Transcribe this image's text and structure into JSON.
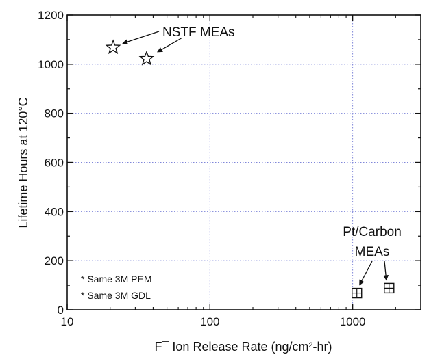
{
  "chart_data": {
    "type": "scatter",
    "title": "",
    "xlabel": "F¯ Ion Release Rate (ng/cm²-hr)",
    "ylabel": "Lifetime Hours at 120°C",
    "xscale": "log",
    "xlim": [
      10,
      3000
    ],
    "ylim": [
      0,
      1200
    ],
    "x_ticks": [
      "10",
      "100",
      "1000"
    ],
    "y_ticks": [
      "0",
      "200",
      "400",
      "600",
      "800",
      "1000",
      "1200"
    ],
    "grid": "dotted",
    "series": [
      {
        "marker": "star",
        "points": [
          {
            "x": 21,
            "y": 1068
          },
          {
            "x": 36,
            "y": 1022
          }
        ]
      },
      {
        "marker": "boxed-plus",
        "points": [
          {
            "x": 1070,
            "y": 68
          },
          {
            "x": 1800,
            "y": 88
          }
        ]
      }
    ],
    "annotations": [
      {
        "text": "NSTF MEAs"
      },
      {
        "text": "Pt/Carbon",
        "text2": "MEAs"
      }
    ],
    "notes": [
      "* Same 3M PEM",
      "* Same 3M GDL"
    ]
  }
}
